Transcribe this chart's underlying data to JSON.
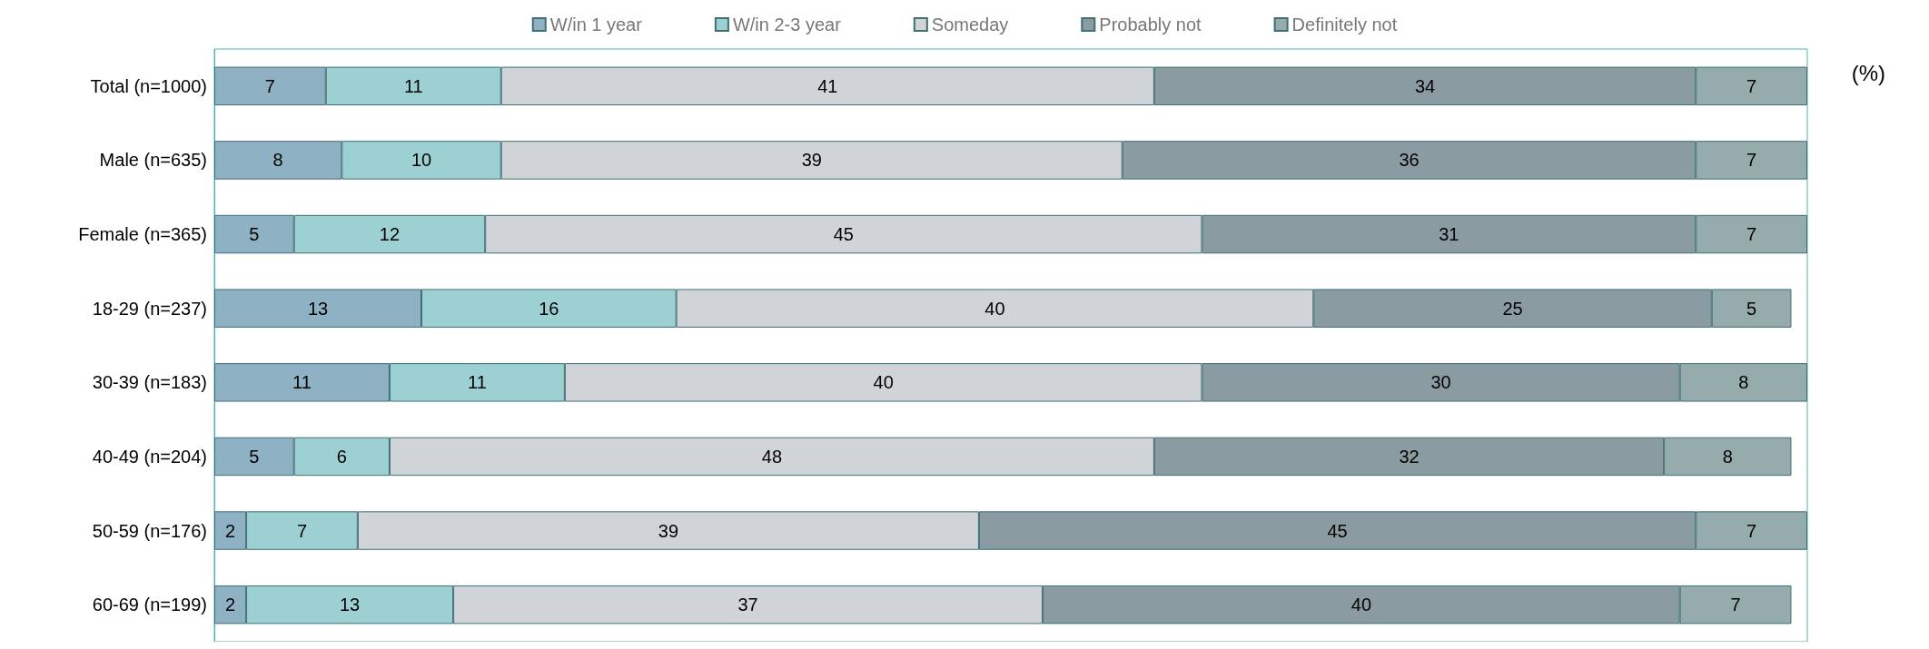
{
  "chart_data": {
    "type": "bar",
    "orientation": "horizontal",
    "stacked": true,
    "data_labels": true,
    "legend": "top",
    "grid": false,
    "tick_labels": "y",
    "xlim": [
      0,
      100
    ],
    "categories": [
      "Total (n=1000)",
      "Male (n=635)",
      "Female (n=365)",
      "18-29 (n=237)",
      "30-39 (n=183)",
      "40-49 (n=204)",
      "50-59 (n=176)",
      "60-69 (n=199)"
    ],
    "annotations": [
      "(%)"
    ],
    "series": [
      {
        "name": "W/in 1 year",
        "color": "#8fb1c4",
        "values": [
          7,
          8,
          5,
          13,
          11,
          5,
          2,
          2
        ]
      },
      {
        "name": "W/in 2-3 year",
        "color": "#9dd0d3",
        "values": [
          11,
          10,
          12,
          16,
          11,
          6,
          7,
          13
        ]
      },
      {
        "name": "Someday",
        "color": "#d0d3d8",
        "values": [
          41,
          39,
          45,
          40,
          40,
          48,
          39,
          37
        ]
      },
      {
        "name": "Probably not",
        "color": "#8a9ba2",
        "values": [
          34,
          36,
          31,
          25,
          30,
          32,
          45,
          40
        ]
      },
      {
        "name": "Definitely not",
        "color": "#95abac",
        "values": [
          7,
          7,
          7,
          5,
          8,
          8,
          7,
          7
        ]
      }
    ]
  }
}
